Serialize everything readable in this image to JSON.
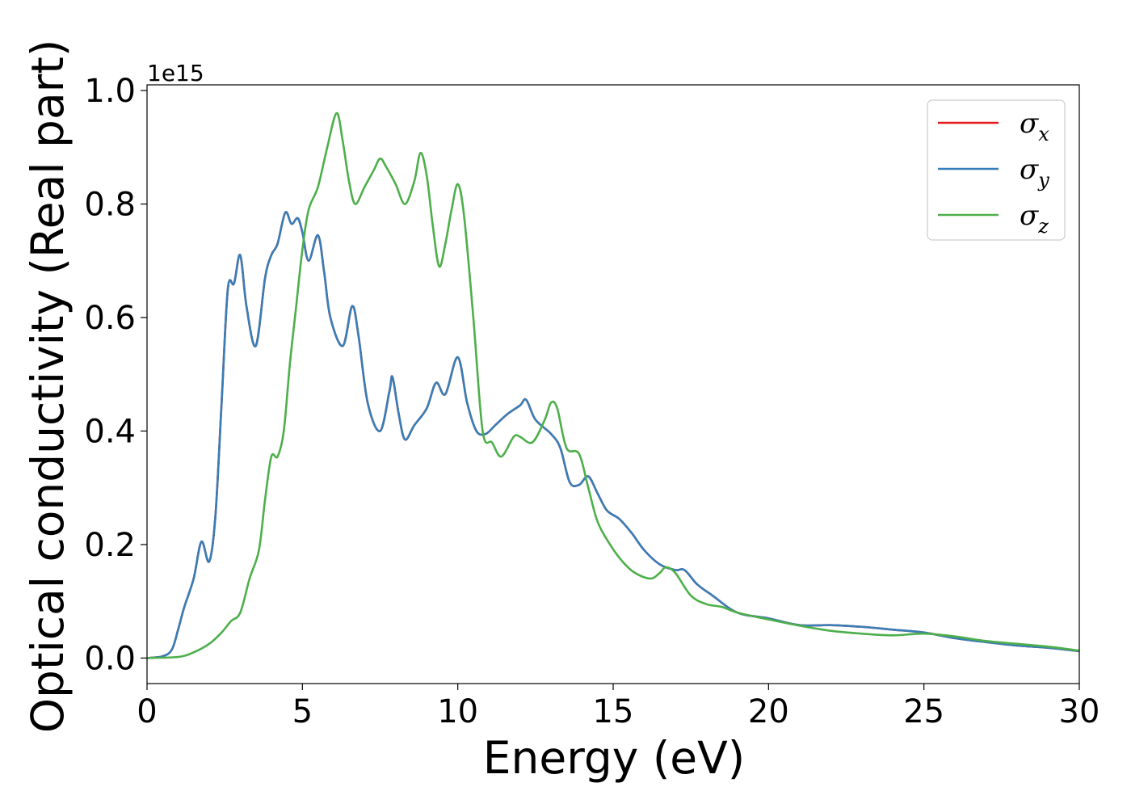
{
  "chart_data": {
    "type": "line",
    "xlabel": "Energy (eV)",
    "ylabel": "Optical conductivity (Real part)",
    "y_offset_text": "1e15",
    "xlim": [
      0,
      30
    ],
    "ylim": [
      -0.045,
      1.01
    ],
    "x_ticks": [
      0,
      5,
      10,
      15,
      20,
      25,
      30
    ],
    "x_tick_labels": [
      "0",
      "5",
      "10",
      "15",
      "20",
      "25",
      "30"
    ],
    "y_ticks": [
      0.0,
      0.2,
      0.4,
      0.6,
      0.8,
      1.0
    ],
    "y_tick_labels": [
      "0.0",
      "0.2",
      "0.4",
      "0.6",
      "0.8",
      "1.0"
    ],
    "grid": false,
    "legend_position": "top-right",
    "colors": {
      "x": "#e41a1c",
      "y": "#377eb8",
      "z": "#4daf4a"
    },
    "legend": [
      {
        "symbol": "σ",
        "subscript": "x",
        "color": "#e41a1c"
      },
      {
        "symbol": "σ",
        "subscript": "y",
        "color": "#377eb8"
      },
      {
        "symbol": "σ",
        "subscript": "z",
        "color": "#4daf4a"
      }
    ],
    "series": [
      {
        "key": "x",
        "points": [
          [
            0,
            0
          ],
          [
            0.5,
            0.003
          ],
          [
            0.8,
            0.015
          ],
          [
            1.0,
            0.05
          ],
          [
            1.2,
            0.09
          ],
          [
            1.5,
            0.14
          ],
          [
            1.75,
            0.205
          ],
          [
            2.0,
            0.17
          ],
          [
            2.2,
            0.25
          ],
          [
            2.4,
            0.45
          ],
          [
            2.6,
            0.65
          ],
          [
            2.8,
            0.66
          ],
          [
            3.0,
            0.71
          ],
          [
            3.2,
            0.62
          ],
          [
            3.5,
            0.55
          ],
          [
            3.8,
            0.67
          ],
          [
            4.0,
            0.71
          ],
          [
            4.2,
            0.73
          ],
          [
            4.45,
            0.785
          ],
          [
            4.65,
            0.765
          ],
          [
            4.85,
            0.775
          ],
          [
            5.0,
            0.75
          ],
          [
            5.2,
            0.7
          ],
          [
            5.5,
            0.745
          ],
          [
            5.7,
            0.68
          ],
          [
            5.9,
            0.6
          ],
          [
            6.3,
            0.55
          ],
          [
            6.6,
            0.62
          ],
          [
            6.8,
            0.57
          ],
          [
            7.1,
            0.45
          ],
          [
            7.5,
            0.4
          ],
          [
            7.8,
            0.47
          ],
          [
            7.9,
            0.495
          ],
          [
            8.1,
            0.43
          ],
          [
            8.3,
            0.385
          ],
          [
            8.6,
            0.41
          ],
          [
            9.0,
            0.44
          ],
          [
            9.3,
            0.485
          ],
          [
            9.6,
            0.465
          ],
          [
            10.0,
            0.53
          ],
          [
            10.3,
            0.45
          ],
          [
            10.6,
            0.4
          ],
          [
            10.9,
            0.395
          ],
          [
            11.2,
            0.41
          ],
          [
            11.6,
            0.43
          ],
          [
            12.0,
            0.445
          ],
          [
            12.2,
            0.455
          ],
          [
            12.5,
            0.42
          ],
          [
            13.0,
            0.395
          ],
          [
            13.3,
            0.37
          ],
          [
            13.6,
            0.31
          ],
          [
            13.9,
            0.305
          ],
          [
            14.2,
            0.32
          ],
          [
            14.5,
            0.29
          ],
          [
            14.8,
            0.26
          ],
          [
            15.2,
            0.245
          ],
          [
            15.6,
            0.22
          ],
          [
            16.0,
            0.19
          ],
          [
            16.5,
            0.165
          ],
          [
            17.0,
            0.155
          ],
          [
            17.3,
            0.155
          ],
          [
            17.7,
            0.13
          ],
          [
            18.2,
            0.11
          ],
          [
            19.0,
            0.08
          ],
          [
            20.0,
            0.07
          ],
          [
            21.0,
            0.058
          ],
          [
            22.0,
            0.058
          ],
          [
            23.0,
            0.055
          ],
          [
            24.0,
            0.05
          ],
          [
            25.0,
            0.045
          ],
          [
            26.0,
            0.035
          ],
          [
            27.0,
            0.028
          ],
          [
            28.0,
            0.022
          ],
          [
            29.0,
            0.018
          ],
          [
            30.0,
            0.012
          ]
        ]
      },
      {
        "key": "y",
        "points": [
          [
            0,
            0
          ],
          [
            0.5,
            0.003
          ],
          [
            0.8,
            0.015
          ],
          [
            1.0,
            0.05
          ],
          [
            1.2,
            0.09
          ],
          [
            1.5,
            0.14
          ],
          [
            1.75,
            0.205
          ],
          [
            2.0,
            0.17
          ],
          [
            2.2,
            0.25
          ],
          [
            2.4,
            0.45
          ],
          [
            2.6,
            0.65
          ],
          [
            2.8,
            0.66
          ],
          [
            3.0,
            0.71
          ],
          [
            3.2,
            0.62
          ],
          [
            3.5,
            0.55
          ],
          [
            3.8,
            0.67
          ],
          [
            4.0,
            0.71
          ],
          [
            4.2,
            0.73
          ],
          [
            4.45,
            0.785
          ],
          [
            4.65,
            0.765
          ],
          [
            4.85,
            0.775
          ],
          [
            5.0,
            0.75
          ],
          [
            5.2,
            0.7
          ],
          [
            5.5,
            0.745
          ],
          [
            5.7,
            0.68
          ],
          [
            5.9,
            0.6
          ],
          [
            6.3,
            0.55
          ],
          [
            6.6,
            0.62
          ],
          [
            6.8,
            0.57
          ],
          [
            7.1,
            0.45
          ],
          [
            7.5,
            0.4
          ],
          [
            7.8,
            0.47
          ],
          [
            7.9,
            0.495
          ],
          [
            8.1,
            0.43
          ],
          [
            8.3,
            0.385
          ],
          [
            8.6,
            0.41
          ],
          [
            9.0,
            0.44
          ],
          [
            9.3,
            0.485
          ],
          [
            9.6,
            0.465
          ],
          [
            10.0,
            0.53
          ],
          [
            10.3,
            0.45
          ],
          [
            10.6,
            0.4
          ],
          [
            10.9,
            0.395
          ],
          [
            11.2,
            0.41
          ],
          [
            11.6,
            0.43
          ],
          [
            12.0,
            0.445
          ],
          [
            12.2,
            0.455
          ],
          [
            12.5,
            0.42
          ],
          [
            13.0,
            0.395
          ],
          [
            13.3,
            0.37
          ],
          [
            13.6,
            0.31
          ],
          [
            13.9,
            0.305
          ],
          [
            14.2,
            0.32
          ],
          [
            14.5,
            0.29
          ],
          [
            14.8,
            0.26
          ],
          [
            15.2,
            0.245
          ],
          [
            15.6,
            0.22
          ],
          [
            16.0,
            0.19
          ],
          [
            16.5,
            0.165
          ],
          [
            17.0,
            0.155
          ],
          [
            17.3,
            0.155
          ],
          [
            17.7,
            0.13
          ],
          [
            18.2,
            0.11
          ],
          [
            19.0,
            0.08
          ],
          [
            20.0,
            0.07
          ],
          [
            21.0,
            0.058
          ],
          [
            22.0,
            0.058
          ],
          [
            23.0,
            0.055
          ],
          [
            24.0,
            0.05
          ],
          [
            25.0,
            0.045
          ],
          [
            26.0,
            0.035
          ],
          [
            27.0,
            0.028
          ],
          [
            28.0,
            0.022
          ],
          [
            29.0,
            0.018
          ],
          [
            30.0,
            0.012
          ]
        ]
      },
      {
        "key": "z",
        "points": [
          [
            0,
            0
          ],
          [
            1.0,
            0.002
          ],
          [
            1.5,
            0.01
          ],
          [
            2.0,
            0.025
          ],
          [
            2.4,
            0.045
          ],
          [
            2.7,
            0.065
          ],
          [
            3.0,
            0.08
          ],
          [
            3.3,
            0.14
          ],
          [
            3.6,
            0.19
          ],
          [
            3.8,
            0.28
          ],
          [
            4.0,
            0.355
          ],
          [
            4.2,
            0.355
          ],
          [
            4.4,
            0.4
          ],
          [
            4.6,
            0.52
          ],
          [
            4.8,
            0.62
          ],
          [
            5.0,
            0.72
          ],
          [
            5.2,
            0.79
          ],
          [
            5.5,
            0.83
          ],
          [
            5.8,
            0.9
          ],
          [
            6.1,
            0.96
          ],
          [
            6.3,
            0.91
          ],
          [
            6.5,
            0.84
          ],
          [
            6.7,
            0.8
          ],
          [
            7.0,
            0.83
          ],
          [
            7.3,
            0.86
          ],
          [
            7.5,
            0.88
          ],
          [
            7.7,
            0.865
          ],
          [
            8.0,
            0.835
          ],
          [
            8.3,
            0.8
          ],
          [
            8.6,
            0.84
          ],
          [
            8.8,
            0.89
          ],
          [
            9.0,
            0.85
          ],
          [
            9.2,
            0.76
          ],
          [
            9.4,
            0.69
          ],
          [
            9.6,
            0.73
          ],
          [
            9.8,
            0.79
          ],
          [
            10.0,
            0.835
          ],
          [
            10.2,
            0.78
          ],
          [
            10.5,
            0.6
          ],
          [
            10.8,
            0.4
          ],
          [
            11.1,
            0.38
          ],
          [
            11.4,
            0.355
          ],
          [
            11.8,
            0.39
          ],
          [
            12.0,
            0.39
          ],
          [
            12.4,
            0.38
          ],
          [
            12.8,
            0.42
          ],
          [
            13.0,
            0.45
          ],
          [
            13.2,
            0.44
          ],
          [
            13.5,
            0.37
          ],
          [
            13.9,
            0.36
          ],
          [
            14.2,
            0.3
          ],
          [
            14.5,
            0.24
          ],
          [
            14.9,
            0.2
          ],
          [
            15.3,
            0.17
          ],
          [
            15.7,
            0.15
          ],
          [
            16.2,
            0.14
          ],
          [
            16.5,
            0.15
          ],
          [
            16.7,
            0.16
          ],
          [
            17.0,
            0.15
          ],
          [
            17.5,
            0.11
          ],
          [
            18.0,
            0.095
          ],
          [
            18.5,
            0.09
          ],
          [
            19.0,
            0.08
          ],
          [
            20.0,
            0.068
          ],
          [
            21.0,
            0.057
          ],
          [
            22.0,
            0.048
          ],
          [
            23.0,
            0.043
          ],
          [
            24.0,
            0.04
          ],
          [
            25.0,
            0.043
          ],
          [
            26.0,
            0.038
          ],
          [
            27.0,
            0.03
          ],
          [
            28.0,
            0.025
          ],
          [
            29.0,
            0.02
          ],
          [
            30.0,
            0.013
          ]
        ]
      }
    ]
  }
}
